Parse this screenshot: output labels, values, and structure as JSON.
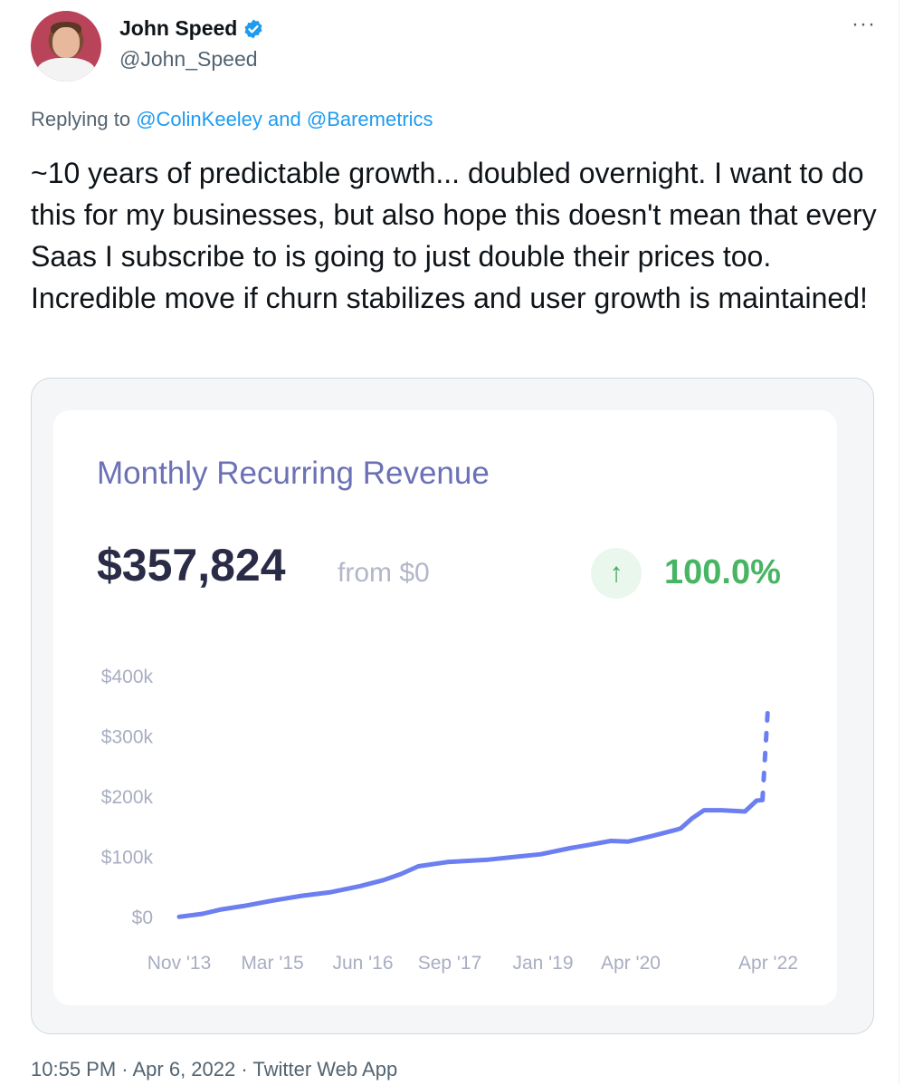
{
  "tweet": {
    "display_name": "John Speed",
    "handle": "@John_Speed",
    "reply_prefix": "Replying to ",
    "reply_mention_1": "@ColinKeeley",
    "reply_and": " and ",
    "reply_mention_2": "@Baremetrics",
    "text": "~10 years of predictable growth... doubled overnight. I want to do this for my businesses, but also hope this doesn't mean that every Saas I subscribe to is going to just double their prices too. Incredible move if churn stabilizes and user growth is maintained!",
    "footer": "10:55 PM · Apr 6, 2022 · Twitter Web App",
    "more_glyph": "···"
  },
  "icons": {
    "avatar": "avatar",
    "verified": "verified-badge-icon",
    "more": "more-options-icon",
    "growth": "up-arrow-icon"
  },
  "colors": {
    "accent": "#1d9bf0",
    "chart_line": "#6b7ff0",
    "title": "#6c71b5",
    "growth": "#47b564"
  },
  "card": {
    "title": "Monthly Recurring Revenue",
    "value": "$357,824",
    "from": "from $0",
    "growth_arrow": "↑",
    "growth": "100.0%"
  },
  "chart_data": {
    "type": "line",
    "title": "Monthly Recurring Revenue",
    "x_tick_labels": [
      "Nov '13",
      "Mar '15",
      "Jun '16",
      "Sep '17",
      "Jan '19",
      "Apr '20",
      "Apr '22"
    ],
    "y_tick_labels": [
      "$400k",
      "$300k",
      "$200k",
      "$100k",
      "$0"
    ],
    "y_ticks": [
      400000,
      300000,
      200000,
      100000,
      0
    ],
    "ylim": [
      0,
      400000
    ],
    "xlim": [
      "2013-11",
      "2022-04"
    ],
    "grid": false,
    "series": [
      {
        "style": "solid",
        "points": [
          [
            "2013-11",
            1000
          ],
          [
            "2014-03",
            6000
          ],
          [
            "2014-06",
            13000
          ],
          [
            "2014-10",
            19000
          ],
          [
            "2015-03",
            28000
          ],
          [
            "2015-08",
            36000
          ],
          [
            "2016-01",
            42000
          ],
          [
            "2016-06",
            52000
          ],
          [
            "2016-10",
            62000
          ],
          [
            "2017-01",
            72000
          ],
          [
            "2017-04",
            85000
          ],
          [
            "2017-09",
            92000
          ],
          [
            "2018-04",
            96000
          ],
          [
            "2018-08",
            100000
          ],
          [
            "2019-01",
            105000
          ],
          [
            "2019-06",
            115000
          ],
          [
            "2019-09",
            120000
          ],
          [
            "2020-01",
            127000
          ],
          [
            "2020-04",
            126000
          ],
          [
            "2020-08",
            135000
          ],
          [
            "2020-12",
            145000
          ],
          [
            "2021-01",
            148000
          ],
          [
            "2021-03",
            165000
          ],
          [
            "2021-05",
            178000
          ],
          [
            "2021-08",
            178000
          ],
          [
            "2021-12",
            176000
          ],
          [
            "2022-02",
            194000
          ],
          [
            "2022-03",
            195000
          ]
        ]
      },
      {
        "style": "dashed",
        "points": [
          [
            "2022-03",
            195000
          ],
          [
            "2022-04",
            357824
          ]
        ]
      }
    ]
  }
}
